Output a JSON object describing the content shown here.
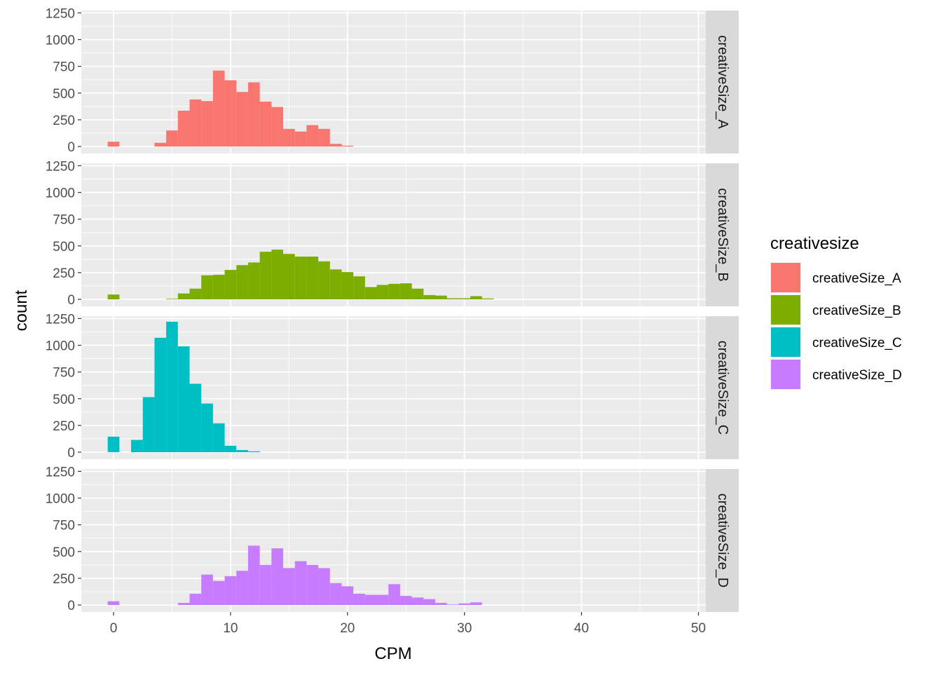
{
  "chart_data": {
    "type": "histogram",
    "facet_layout": "rows",
    "xlabel": "CPM",
    "ylabel": "count",
    "xlim": [
      -3,
      50
    ],
    "ylim": [
      0,
      1250
    ],
    "x_ticks": [
      0,
      10,
      20,
      30,
      40,
      50
    ],
    "y_ticks": [
      0,
      250,
      500,
      750,
      1000,
      1250
    ],
    "bin_width": 1,
    "grid": true,
    "legend": {
      "title": "creativesize",
      "position": "right",
      "entries": [
        {
          "name": "creativeSize_A",
          "color": "#F8766D"
        },
        {
          "name": "creativeSize_B",
          "color": "#7CAE00"
        },
        {
          "name": "creativeSize_C",
          "color": "#00BFC4"
        },
        {
          "name": "creativeSize_D",
          "color": "#C77CFF"
        }
      ]
    },
    "panels": [
      {
        "label": "creativeSize_A",
        "color": "#F8766D",
        "bins": [
          {
            "x": 0,
            "y": 45
          },
          {
            "x": 4,
            "y": 35
          },
          {
            "x": 5,
            "y": 150
          },
          {
            "x": 6,
            "y": 335
          },
          {
            "x": 7,
            "y": 440
          },
          {
            "x": 8,
            "y": 425
          },
          {
            "x": 9,
            "y": 710
          },
          {
            "x": 10,
            "y": 620
          },
          {
            "x": 11,
            "y": 510
          },
          {
            "x": 12,
            "y": 600
          },
          {
            "x": 13,
            "y": 420
          },
          {
            "x": 14,
            "y": 370
          },
          {
            "x": 15,
            "y": 165
          },
          {
            "x": 16,
            "y": 140
          },
          {
            "x": 17,
            "y": 200
          },
          {
            "x": 18,
            "y": 165
          },
          {
            "x": 19,
            "y": 25
          },
          {
            "x": 20,
            "y": 8
          }
        ]
      },
      {
        "label": "creativeSize_B",
        "color": "#7CAE00",
        "bins": [
          {
            "x": 0,
            "y": 45
          },
          {
            "x": 5,
            "y": 5
          },
          {
            "x": 6,
            "y": 55
          },
          {
            "x": 7,
            "y": 100
          },
          {
            "x": 8,
            "y": 225
          },
          {
            "x": 9,
            "y": 230
          },
          {
            "x": 10,
            "y": 275
          },
          {
            "x": 11,
            "y": 320
          },
          {
            "x": 12,
            "y": 345
          },
          {
            "x": 13,
            "y": 445
          },
          {
            "x": 14,
            "y": 465
          },
          {
            "x": 15,
            "y": 425
          },
          {
            "x": 16,
            "y": 400
          },
          {
            "x": 17,
            "y": 400
          },
          {
            "x": 18,
            "y": 355
          },
          {
            "x": 19,
            "y": 280
          },
          {
            "x": 20,
            "y": 255
          },
          {
            "x": 21,
            "y": 215
          },
          {
            "x": 22,
            "y": 115
          },
          {
            "x": 23,
            "y": 135
          },
          {
            "x": 24,
            "y": 145
          },
          {
            "x": 25,
            "y": 150
          },
          {
            "x": 26,
            "y": 100
          },
          {
            "x": 27,
            "y": 40
          },
          {
            "x": 28,
            "y": 35
          },
          {
            "x": 29,
            "y": 10
          },
          {
            "x": 30,
            "y": 10
          },
          {
            "x": 31,
            "y": 30
          },
          {
            "x": 32,
            "y": 8
          }
        ]
      },
      {
        "label": "creativeSize_C",
        "color": "#00BFC4",
        "bins": [
          {
            "x": 0,
            "y": 145
          },
          {
            "x": 2,
            "y": 115
          },
          {
            "x": 3,
            "y": 515
          },
          {
            "x": 4,
            "y": 1070
          },
          {
            "x": 5,
            "y": 1220
          },
          {
            "x": 6,
            "y": 990
          },
          {
            "x": 7,
            "y": 640
          },
          {
            "x": 8,
            "y": 455
          },
          {
            "x": 9,
            "y": 270
          },
          {
            "x": 10,
            "y": 60
          },
          {
            "x": 11,
            "y": 20
          },
          {
            "x": 12,
            "y": 8
          }
        ]
      },
      {
        "label": "creativeSize_D",
        "color": "#C77CFF",
        "bins": [
          {
            "x": 0,
            "y": 35
          },
          {
            "x": 6,
            "y": 20
          },
          {
            "x": 7,
            "y": 105
          },
          {
            "x": 8,
            "y": 285
          },
          {
            "x": 9,
            "y": 225
          },
          {
            "x": 10,
            "y": 270
          },
          {
            "x": 11,
            "y": 320
          },
          {
            "x": 12,
            "y": 555
          },
          {
            "x": 13,
            "y": 375
          },
          {
            "x": 14,
            "y": 530
          },
          {
            "x": 15,
            "y": 345
          },
          {
            "x": 16,
            "y": 410
          },
          {
            "x": 17,
            "y": 375
          },
          {
            "x": 18,
            "y": 345
          },
          {
            "x": 19,
            "y": 205
          },
          {
            "x": 20,
            "y": 175
          },
          {
            "x": 21,
            "y": 105
          },
          {
            "x": 22,
            "y": 95
          },
          {
            "x": 23,
            "y": 95
          },
          {
            "x": 24,
            "y": 195
          },
          {
            "x": 25,
            "y": 85
          },
          {
            "x": 26,
            "y": 70
          },
          {
            "x": 27,
            "y": 55
          },
          {
            "x": 28,
            "y": 20
          },
          {
            "x": 29,
            "y": 5
          },
          {
            "x": 30,
            "y": 15
          },
          {
            "x": 31,
            "y": 25
          }
        ]
      }
    ]
  }
}
